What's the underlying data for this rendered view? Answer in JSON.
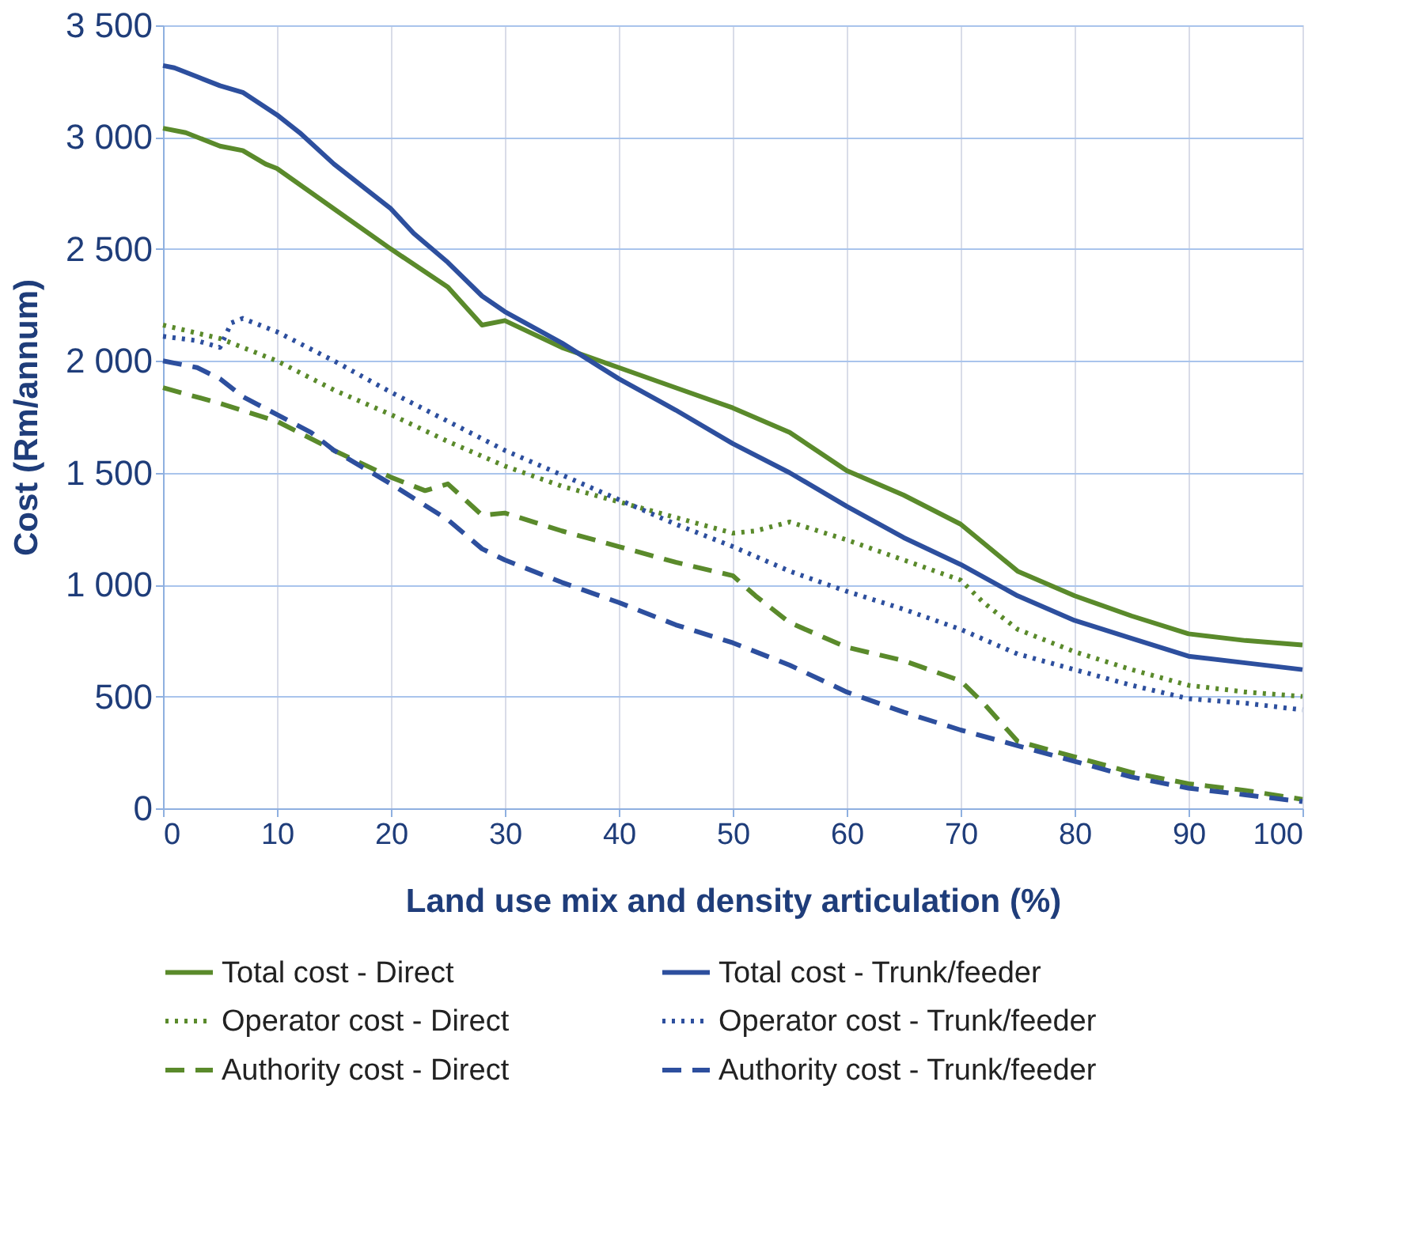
{
  "chart_data": {
    "type": "line",
    "xlabel": "Land use mix and density articulation (%)",
    "ylabel": "Cost (Rm/annum)",
    "xlim": [
      0,
      100
    ],
    "xticks": [
      0,
      10,
      20,
      30,
      40,
      50,
      60,
      70,
      80,
      90,
      100
    ],
    "ylim": [
      0,
      3500
    ],
    "yticks": [
      0,
      500,
      {
        "value": 1000,
        "label": "1 000"
      },
      {
        "value": 1500,
        "label": "1 500"
      },
      {
        "value": 2000,
        "label": "2 000"
      },
      {
        "value": 2500,
        "label": "2 500"
      },
      {
        "value": 3000,
        "label": "3 000"
      },
      {
        "value": 3500,
        "label": "3 500"
      }
    ],
    "grid": true,
    "legend": "bottom",
    "marker": "none",
    "series": [
      {
        "name": "Total cost - Direct",
        "color": "#5a8a2b",
        "line_style": "solid",
        "x": [
          0,
          2,
          5,
          7,
          9,
          10,
          15,
          20,
          25,
          28,
          30,
          35,
          40,
          45,
          50,
          55,
          60,
          65,
          70,
          75,
          80,
          85,
          90,
          95,
          100
        ],
        "values": [
          3040,
          3020,
          2960,
          2940,
          2880,
          2860,
          2680,
          2500,
          2330,
          2160,
          2180,
          2060,
          1970,
          1880,
          1790,
          1680,
          1510,
          1400,
          1270,
          1060,
          950,
          860,
          780,
          750,
          730
        ]
      },
      {
        "name": "Total cost - Trunk/feeder",
        "color": "#2d4f9e",
        "line_style": "solid",
        "x": [
          0,
          1,
          3,
          5,
          7,
          10,
          12,
          15,
          20,
          22,
          25,
          28,
          30,
          35,
          40,
          45,
          50,
          55,
          60,
          65,
          70,
          75,
          80,
          85,
          90,
          95,
          100
        ],
        "values": [
          3320,
          3310,
          3270,
          3230,
          3200,
          3100,
          3020,
          2880,
          2680,
          2570,
          2440,
          2290,
          2220,
          2080,
          1920,
          1780,
          1630,
          1500,
          1350,
          1210,
          1090,
          950,
          840,
          760,
          680,
          650,
          620
        ]
      },
      {
        "name": "Operator cost - Direct",
        "color": "#5a8a2b",
        "line_style": "dotted",
        "x": [
          0,
          5,
          10,
          15,
          20,
          25,
          30,
          35,
          40,
          45,
          50,
          52,
          55,
          60,
          65,
          70,
          72,
          75,
          80,
          85,
          90,
          95,
          100
        ],
        "values": [
          2160,
          2100,
          2000,
          1870,
          1760,
          1640,
          1530,
          1440,
          1370,
          1300,
          1230,
          1240,
          1280,
          1200,
          1110,
          1020,
          920,
          800,
          700,
          620,
          550,
          520,
          500
        ]
      },
      {
        "name": "Operator cost - Trunk/feeder",
        "color": "#2d4f9e",
        "line_style": "dotted",
        "x": [
          0,
          3,
          5,
          6,
          7,
          10,
          15,
          20,
          25,
          30,
          35,
          40,
          45,
          50,
          55,
          60,
          65,
          70,
          75,
          80,
          85,
          90,
          95,
          100
        ],
        "values": [
          2110,
          2090,
          2060,
          2170,
          2190,
          2130,
          2000,
          1860,
          1730,
          1600,
          1490,
          1380,
          1270,
          1170,
          1060,
          970,
          890,
          800,
          690,
          620,
          550,
          490,
          470,
          440
        ]
      },
      {
        "name": "Authority cost - Direct",
        "color": "#5a8a2b",
        "line_style": "dashed",
        "x": [
          0,
          5,
          10,
          15,
          20,
          23,
          25,
          28,
          30,
          35,
          40,
          45,
          50,
          52,
          55,
          60,
          65,
          70,
          72,
          75,
          80,
          85,
          90,
          95,
          100
        ],
        "values": [
          1880,
          1810,
          1730,
          1600,
          1480,
          1420,
          1450,
          1310,
          1320,
          1240,
          1170,
          1100,
          1040,
          950,
          830,
          720,
          660,
          570,
          470,
          300,
          230,
          160,
          110,
          80,
          40
        ]
      },
      {
        "name": "Authority cost - Trunk/feeder",
        "color": "#2d4f9e",
        "line_style": "dashed",
        "x": [
          0,
          3,
          5,
          7,
          10,
          13,
          15,
          20,
          25,
          28,
          30,
          35,
          40,
          45,
          50,
          55,
          60,
          65,
          70,
          75,
          80,
          85,
          90,
          95,
          100
        ],
        "values": [
          2000,
          1970,
          1920,
          1840,
          1760,
          1680,
          1600,
          1450,
          1290,
          1160,
          1110,
          1010,
          920,
          820,
          740,
          640,
          520,
          430,
          350,
          280,
          210,
          140,
          90,
          60,
          30
        ]
      }
    ]
  }
}
